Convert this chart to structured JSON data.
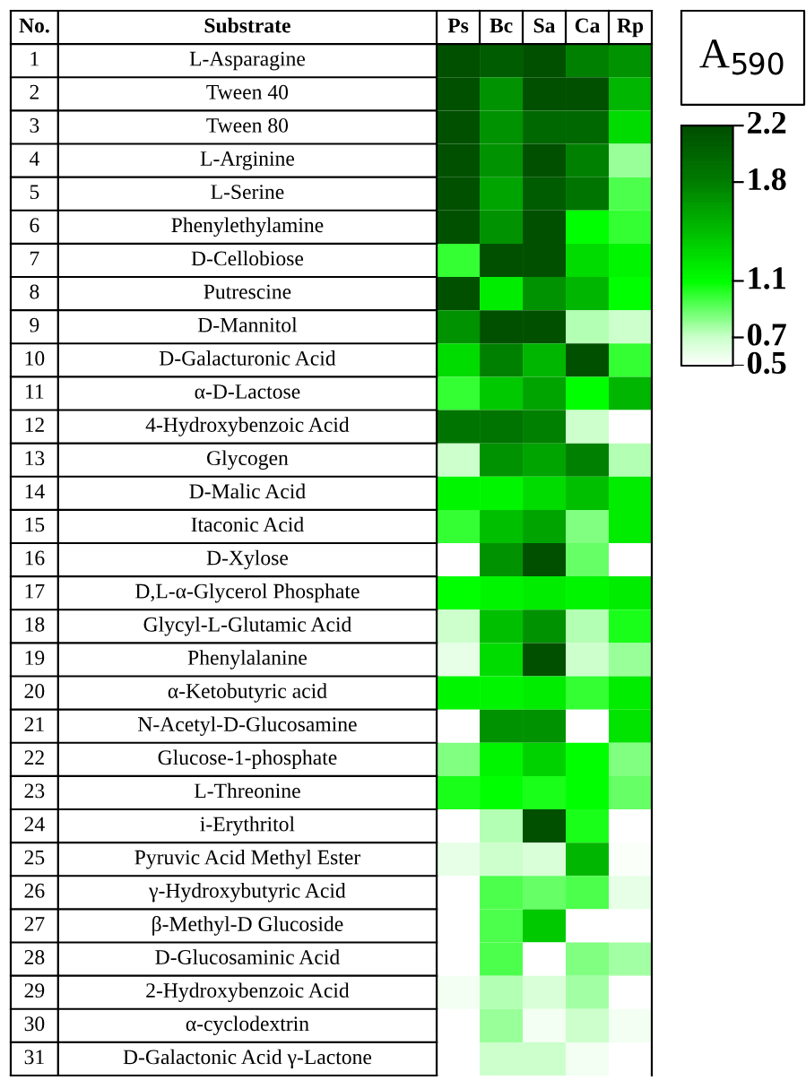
{
  "chart_data": {
    "type": "heatmap",
    "title": "Substrate",
    "subtitle": "No.",
    "clabel": "A$_{590}$",
    "categories": [
      "Ps",
      "Bc",
      "Sa",
      "Ca",
      "Rp"
    ],
    "y_categories": [
      "L-Asparagine",
      "Tween 40",
      "Tween 80",
      "L-Arginine",
      "L-Serine",
      "Phenylethylamine",
      "D-Cellobiose",
      "Putrescine",
      "D-Mannitol",
      "D-Galacturonic Acid",
      "α-D-Lactose",
      "4-Hydroxybenzoic Acid",
      "Glycogen",
      "D-Malic Acid",
      "Itaconic Acid",
      "D-Xylose",
      "D,L-α-Glycerol Phosphate",
      "Glycyl-L-Glutamic Acid",
      "Phenylalanine",
      "α-Ketobutyric acid",
      "N-Acetyl-D-Glucosamine",
      "Glucose-1-phosphate",
      "L-Threonine",
      "i-Erythritol",
      "Pyruvic Acid Methyl Ester",
      "γ-Hydroxybutyric Acid",
      "β-Methyl-D Glucoside",
      "D-Glucosaminic Acid",
      "2-Hydroxybenzoic Acid",
      "α-cyclodextrin",
      "D-Galactonic Acid γ-Lactone"
    ],
    "y2_categories": [
      "1",
      "2",
      "3",
      "4",
      "5",
      "6",
      "7",
      "8",
      "9",
      "10",
      "11",
      "12",
      "13",
      "14",
      "15",
      "16",
      "17",
      "18",
      "19",
      "20",
      "21",
      "22",
      "23",
      "24",
      "25",
      "26",
      "27",
      "28",
      "29",
      "30",
      "31"
    ],
    "cells": [
      [
        2.2,
        2.1,
        2.2,
        1.8,
        1.7
      ],
      [
        2.2,
        1.7,
        2.2,
        2.2,
        1.5
      ],
      [
        2.2,
        1.7,
        2.0,
        2.0,
        1.3
      ],
      [
        2.2,
        1.7,
        2.2,
        1.8,
        0.8
      ],
      [
        2.2,
        1.6,
        2.1,
        1.9,
        0.95
      ],
      [
        2.2,
        1.7,
        2.2,
        1.1,
        1.0
      ],
      [
        1.0,
        2.2,
        2.2,
        1.3,
        1.15
      ],
      [
        2.2,
        1.2,
        1.7,
        1.5,
        1.1
      ],
      [
        1.7,
        2.2,
        2.2,
        0.75,
        0.7
      ],
      [
        1.3,
        1.8,
        1.5,
        2.2,
        1.0
      ],
      [
        1.0,
        1.4,
        1.6,
        1.1,
        1.5
      ],
      [
        1.9,
        1.9,
        1.8,
        0.7,
        0.5
      ],
      [
        0.7,
        1.7,
        1.6,
        1.8,
        0.75
      ],
      [
        1.15,
        1.15,
        1.3,
        1.45,
        1.2
      ],
      [
        1.0,
        1.45,
        1.6,
        0.85,
        1.2
      ],
      [
        0.5,
        1.7,
        2.2,
        0.9,
        0.5
      ],
      [
        1.1,
        1.15,
        1.2,
        1.15,
        1.2
      ],
      [
        0.7,
        1.45,
        1.7,
        0.75,
        1.05
      ],
      [
        0.6,
        1.3,
        2.2,
        0.7,
        0.8
      ],
      [
        1.15,
        1.15,
        1.2,
        1.0,
        1.2
      ],
      [
        0.5,
        1.7,
        1.7,
        0.5,
        1.25
      ],
      [
        0.85,
        1.15,
        1.35,
        1.1,
        0.85
      ],
      [
        1.05,
        1.1,
        1.05,
        1.1,
        0.9
      ],
      [
        0.5,
        0.75,
        2.2,
        1.05,
        0.5
      ],
      [
        0.6,
        0.7,
        0.65,
        1.5,
        0.52
      ],
      [
        0.5,
        0.95,
        0.9,
        0.95,
        0.6
      ],
      [
        0.5,
        0.95,
        1.4,
        0.5,
        0.5
      ],
      [
        0.5,
        0.95,
        0.5,
        0.85,
        0.78
      ],
      [
        0.55,
        0.75,
        0.65,
        0.78,
        0.5
      ],
      [
        0.5,
        0.8,
        0.55,
        0.7,
        0.55
      ],
      [
        0.5,
        0.7,
        0.7,
        0.55,
        0.5
      ]
    ],
    "clim": [
      0.5,
      2.2
    ],
    "cticks": [
      2.2,
      1.8,
      1.1,
      0.7,
      0.5
    ],
    "colors": [
      "#005000",
      "#008000",
      "#00ff00",
      "#ccffcc",
      "#ffffff"
    ]
  }
}
